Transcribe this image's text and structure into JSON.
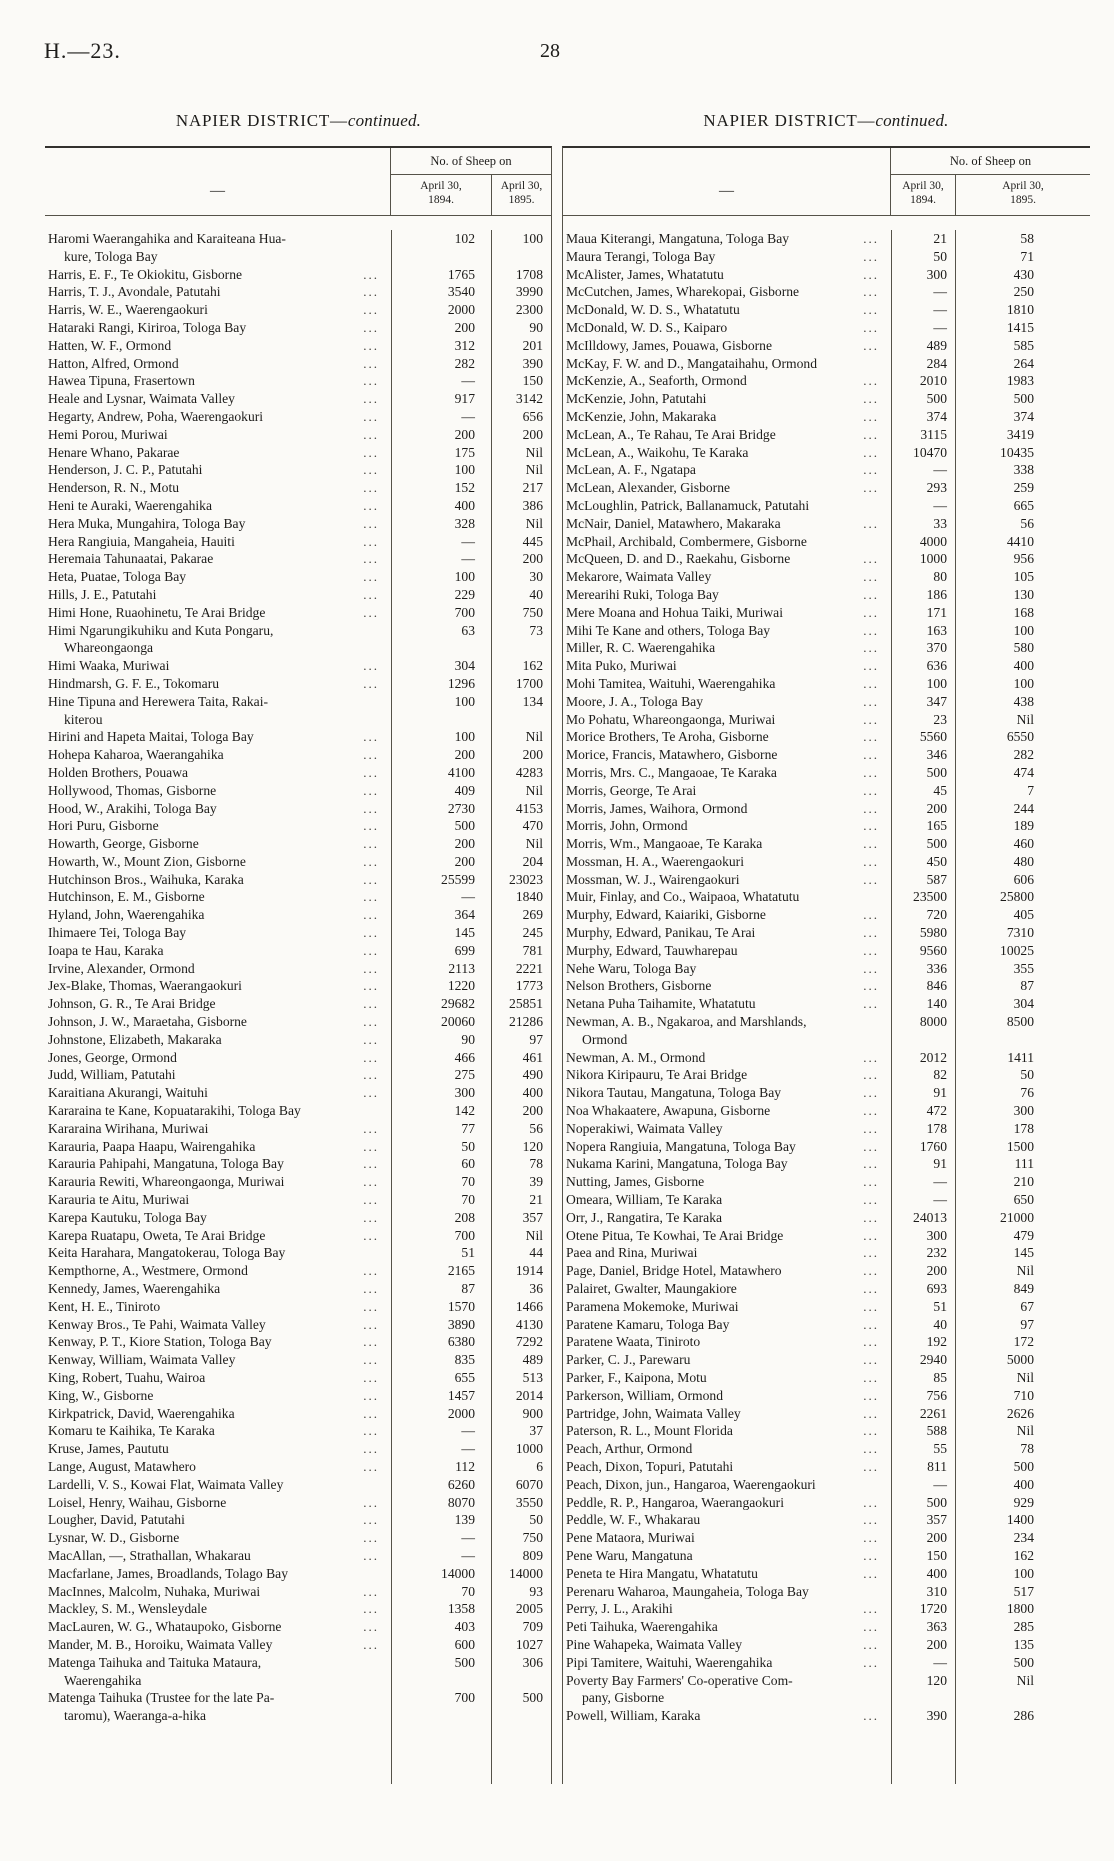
{
  "page": {
    "doc_ref": "H.—23.",
    "page_number": "28"
  },
  "leader_dots": "...",
  "tables": {
    "left": {
      "title_main": "NAPIER DISTRICT—",
      "title_cont": "continued.",
      "placeholder_dash": "—",
      "sheep_header": "No. of Sheep on",
      "col_1894_line1": "April 30,",
      "col_1894_line2": "1894.",
      "col_1895_line1": "April 30,",
      "col_1895_line2": "1895.",
      "rows": [
        [
          "Haromi Waerangahika and Karaiteana Hua-\nkure, Tologa Bay",
          "102",
          "100",
          0
        ],
        [
          "Harris, E. F., Te Okiokitu, Gisborne",
          "1765",
          "1708",
          1
        ],
        [
          "Harris, T. J., Avondale, Patutahi",
          "3540",
          "3990",
          1
        ],
        [
          "Harris, W. E., Waerengaokuri",
          "2000",
          "2300",
          1
        ],
        [
          "Hataraki Rangi, Kiriroa, Tologa Bay",
          "200",
          "90",
          1
        ],
        [
          "Hatten, W. F., Ormond",
          "312",
          "201",
          1
        ],
        [
          "Hatton, Alfred, Ormond",
          "282",
          "390",
          1
        ],
        [
          "Hawea Tipuna, Frasertown",
          "—",
          "150",
          1
        ],
        [
          "Heale and Lysnar, Waimata Valley",
          "917",
          "3142",
          1
        ],
        [
          "Hegarty, Andrew, Poha, Waerengaokuri",
          "—",
          "656",
          1
        ],
        [
          "Hemi Porou, Muriwai",
          "200",
          "200",
          1
        ],
        [
          "Henare Whano, Pakarae",
          "175",
          "Nil",
          1
        ],
        [
          "Henderson, J. C. P., Patutahi",
          "100",
          "Nil",
          1
        ],
        [
          "Henderson, R. N., Motu",
          "152",
          "217",
          1
        ],
        [
          "Heni te Auraki, Waerengahika",
          "400",
          "386",
          1
        ],
        [
          "Hera Muka, Mungahira, Tologa Bay",
          "328",
          "Nil",
          1
        ],
        [
          "Hera Rangiuia, Mangaheia, Hauiti",
          "—",
          "445",
          1
        ],
        [
          "Heremaia Tahunaatai, Pakarae",
          "—",
          "200",
          1
        ],
        [
          "Heta, Puatae, Tologa Bay",
          "100",
          "30",
          1
        ],
        [
          "Hills, J. E., Patutahi",
          "229",
          "40",
          1
        ],
        [
          "Himi Hone, Ruaohinetu, Te Arai Bridge",
          "700",
          "750",
          1
        ],
        [
          "Himi Ngarungikuhiku and Kuta Pongaru,\nWhareongaonga",
          "63",
          "73",
          0
        ],
        [
          "Himi Waaka, Muriwai",
          "304",
          "162",
          1
        ],
        [
          "Hindmarsh, G. F. E., Tokomaru",
          "1296",
          "1700",
          1
        ],
        [
          "Hine Tipuna and Herewera Taita, Rakai-\nkiterou",
          "100",
          "134",
          0
        ],
        [
          "Hirini and Hapeta Maitai, Tologa Bay",
          "100",
          "Nil",
          1
        ],
        [
          "Hohepa Kaharoa, Waerangahika",
          "200",
          "200",
          1
        ],
        [
          "Holden Brothers, Pouawa",
          "4100",
          "4283",
          1
        ],
        [
          "Hollywood, Thomas, Gisborne",
          "409",
          "Nil",
          1
        ],
        [
          "Hood, W., Arakihi, Tologa Bay",
          "2730",
          "4153",
          1
        ],
        [
          "Hori Puru, Gisborne",
          "500",
          "470",
          1
        ],
        [
          "Howarth, George, Gisborne",
          "200",
          "Nil",
          1
        ],
        [
          "Howarth, W., Mount Zion, Gisborne",
          "200",
          "204",
          1
        ],
        [
          "Hutchinson Bros., Waihuka, Karaka",
          "25599",
          "23023",
          1
        ],
        [
          "Hutchinson, E. M., Gisborne",
          "—",
          "1840",
          1
        ],
        [
          "Hyland, John, Waerengahika",
          "364",
          "269",
          1
        ],
        [
          "Ihimaere Tei, Tologa Bay",
          "145",
          "245",
          1
        ],
        [
          "Ioapa te Hau, Karaka",
          "699",
          "781",
          1
        ],
        [
          "Irvine, Alexander, Ormond",
          "2113",
          "2221",
          1
        ],
        [
          "Jex-Blake, Thomas, Waerangaokuri",
          "1220",
          "1773",
          1
        ],
        [
          "Johnson, G. R., Te Arai Bridge",
          "29682",
          "25851",
          1
        ],
        [
          "Johnson, J. W., Maraetaha, Gisborne",
          "20060",
          "21286",
          1
        ],
        [
          "Johnstone, Elizabeth, Makaraka",
          "90",
          "97",
          1
        ],
        [
          "Jones, George, Ormond",
          "466",
          "461",
          1
        ],
        [
          "Judd, William, Patutahi",
          "275",
          "490",
          1
        ],
        [
          "Karaitiana Akurangi, Waituhi",
          "300",
          "400",
          1
        ],
        [
          "Kararaina te Kane, Kopuatarakihi, Tologa Bay",
          "142",
          "200",
          0
        ],
        [
          "Kararaina Wirihana, Muriwai",
          "77",
          "56",
          1
        ],
        [
          "Karauria, Paapa Haapu, Wairengahika",
          "50",
          "120",
          1
        ],
        [
          "Karauria Pahipahi, Mangatuna, Tologa Bay",
          "60",
          "78",
          1
        ],
        [
          "Karauria Rewiti, Whareongaonga, Muriwai",
          "70",
          "39",
          1
        ],
        [
          "Karauria te Aitu, Muriwai",
          "70",
          "21",
          1
        ],
        [
          "Karepa Kautuku, Tologa Bay",
          "208",
          "357",
          1
        ],
        [
          "Karepa Ruatapu, Oweta, Te Arai Bridge",
          "700",
          "Nil",
          1
        ],
        [
          "Keita Harahara, Mangatokerau, Tologa Bay",
          "51",
          "44",
          0
        ],
        [
          "Kempthorne, A., Westmere, Ormond",
          "2165",
          "1914",
          1
        ],
        [
          "Kennedy, James, Waerengahika",
          "87",
          "36",
          1
        ],
        [
          "Kent, H. E., Tiniroto",
          "1570",
          "1466",
          1
        ],
        [
          "Kenway Bros., Te Pahi, Waimata Valley",
          "3890",
          "4130",
          1
        ],
        [
          "Kenway, P. T., Kiore Station, Tologa Bay",
          "6380",
          "7292",
          1
        ],
        [
          "Kenway, William, Waimata Valley",
          "835",
          "489",
          1
        ],
        [
          "King, Robert, Tuahu, Wairoa",
          "655",
          "513",
          1
        ],
        [
          "King, W., Gisborne",
          "1457",
          "2014",
          1
        ],
        [
          "Kirkpatrick, David, Waerengahika",
          "2000",
          "900",
          1
        ],
        [
          "Komaru te Kaihika, Te Karaka",
          "—",
          "37",
          1
        ],
        [
          "Kruse, James, Paututu",
          "—",
          "1000",
          1
        ],
        [
          "Lange, August, Matawhero",
          "112",
          "6",
          1
        ],
        [
          "Lardelli, V. S., Kowai Flat, Waimata Valley",
          "6260",
          "6070",
          0
        ],
        [
          "Loisel, Henry, Waihau, Gisborne",
          "8070",
          "3550",
          1
        ],
        [
          "Lougher, David, Patutahi",
          "139",
          "50",
          1
        ],
        [
          "Lysnar, W. D., Gisborne",
          "—",
          "750",
          1
        ],
        [
          "MacAllan, —, Strathallan, Whakarau",
          "—",
          "809",
          1
        ],
        [
          "Macfarlane, James, Broadlands, Tolago Bay",
          "14000",
          "14000",
          0
        ],
        [
          "MacInnes, Malcolm, Nuhaka, Muriwai",
          "70",
          "93",
          1
        ],
        [
          "Mackley, S. M., Wensleydale",
          "1358",
          "2005",
          1
        ],
        [
          "MacLauren, W. G., Whataupoko, Gisborne",
          "403",
          "709",
          1
        ],
        [
          "Mander, M. B., Horoiku, Waimata Valley",
          "600",
          "1027",
          1
        ],
        [
          "Matenga Taihuka and Taituka Mataura,\nWaerengahika",
          "500",
          "306",
          0
        ],
        [
          "Matenga Taihuka (Trustee for the late Pa-\ntaromu), Waeranga-a-hika",
          "700",
          "500",
          0
        ]
      ]
    },
    "right": {
      "title_main": "NAPIER DISTRICT—",
      "title_cont": "continued.",
      "placeholder_dash": "—",
      "sheep_header": "No. of Sheep on",
      "col_1894_line1": "April 30,",
      "col_1894_line2": "1894.",
      "col_1895_line1": "April 30,",
      "col_1895_line2": "1895.",
      "rows": [
        [
          "Maua Kiterangi, Mangatuna, Tologa Bay",
          "21",
          "58",
          1
        ],
        [
          "Maura Terangi, Tologa Bay",
          "50",
          "71",
          1
        ],
        [
          "McAlister, James, Whatatutu",
          "300",
          "430",
          1
        ],
        [
          "McCutchen, James, Wharekopai, Gisborne",
          "—",
          "250",
          1
        ],
        [
          "McDonald, W. D. S., Whatatutu",
          "—",
          "1810",
          1
        ],
        [
          "McDonald, W. D. S., Kaiparo",
          "—",
          "1415",
          1
        ],
        [
          "McIlldowy, James, Pouawa, Gisborne",
          "489",
          "585",
          1
        ],
        [
          "McKay, F. W. and D., Mangataihahu, Ormond",
          "284",
          "264",
          0
        ],
        [
          "McKenzie, A., Seaforth, Ormond",
          "2010",
          "1983",
          1
        ],
        [
          "McKenzie, John, Patutahi",
          "500",
          "500",
          1
        ],
        [
          "McKenzie, John, Makaraka",
          "374",
          "374",
          1
        ],
        [
          "McLean, A., Te Rahau, Te Arai Bridge",
          "3115",
          "3419",
          1
        ],
        [
          "McLean, A., Waikohu, Te Karaka",
          "10470",
          "10435",
          1
        ],
        [
          "McLean, A. F., Ngatapa",
          "—",
          "338",
          1
        ],
        [
          "McLean, Alexander, Gisborne",
          "293",
          "259",
          1
        ],
        [
          "McLoughlin, Patrick, Ballanamuck, Patutahi",
          "—",
          "665",
          0
        ],
        [
          "McNair, Daniel, Matawhero, Makaraka",
          "33",
          "56",
          1
        ],
        [
          "McPhail, Archibald, Combermere, Gisborne",
          "4000",
          "4410",
          0
        ],
        [
          "McQueen, D. and D., Raekahu, Gisborne",
          "1000",
          "956",
          1
        ],
        [
          "Mekarore, Waimata Valley",
          "80",
          "105",
          1
        ],
        [
          "Merearihi Ruki, Tologa Bay",
          "186",
          "130",
          1
        ],
        [
          "Mere Moana and Hohua Taiki, Muriwai",
          "171",
          "168",
          1
        ],
        [
          "Mihi Te Kane and others, Tologa Bay",
          "163",
          "100",
          1
        ],
        [
          "Miller, R. C. Waerengahika",
          "370",
          "580",
          1
        ],
        [
          "Mita Puko, Muriwai",
          "636",
          "400",
          1
        ],
        [
          "Mohi Tamitea, Waituhi, Waerengahika",
          "100",
          "100",
          1
        ],
        [
          "Moore, J. A., Tologa Bay",
          "347",
          "438",
          1
        ],
        [
          "Mo Pohatu, Whareongaonga, Muriwai",
          "23",
          "Nil",
          1
        ],
        [
          "Morice Brothers, Te Aroha, Gisborne",
          "5560",
          "6550",
          1
        ],
        [
          "Morice, Francis, Matawhero, Gisborne",
          "346",
          "282",
          1
        ],
        [
          "Morris, Mrs. C., Mangaoae, Te Karaka",
          "500",
          "474",
          1
        ],
        [
          "Morris, George, Te Arai",
          "45",
          "7",
          1
        ],
        [
          "Morris, James, Waihora, Ormond",
          "200",
          "244",
          1
        ],
        [
          "Morris, John, Ormond",
          "165",
          "189",
          1
        ],
        [
          "Morris, Wm., Mangaoae, Te Karaka",
          "500",
          "460",
          1
        ],
        [
          "Mossman, H. A., Waerengaokuri",
          "450",
          "480",
          1
        ],
        [
          "Mossman, W. J., Wairengaokuri",
          "587",
          "606",
          1
        ],
        [
          "Muir, Finlay, and Co., Waipaoa, Whatatutu",
          "23500",
          "25800",
          0
        ],
        [
          "Murphy, Edward, Kaiariki, Gisborne",
          "720",
          "405",
          1
        ],
        [
          "Murphy, Edward, Panikau, Te Arai",
          "5980",
          "7310",
          1
        ],
        [
          "Murphy, Edward, Tauwharepau",
          "9560",
          "10025",
          1
        ],
        [
          "Nehe Waru, Tologa Bay",
          "336",
          "355",
          1
        ],
        [
          "Nelson Brothers, Gisborne",
          "846",
          "87",
          1
        ],
        [
          "Netana Puha Taihamite, Whatatutu",
          "140",
          "304",
          1
        ],
        [
          "Newman, A. B., Ngakaroa, and Marshlands,\nOrmond",
          "8000",
          "8500",
          0
        ],
        [
          "Newman, A. M., Ormond",
          "2012",
          "1411",
          1
        ],
        [
          "Nikora Kiripauru, Te Arai Bridge",
          "82",
          "50",
          1
        ],
        [
          "Nikora Tautau, Mangatuna, Tologa Bay",
          "91",
          "76",
          1
        ],
        [
          "Noa Whakaatere, Awapuna, Gisborne",
          "472",
          "300",
          1
        ],
        [
          "Noperakiwi, Waimata Valley",
          "178",
          "178",
          1
        ],
        [
          "Nopera Rangiuia, Mangatuna, Tologa Bay",
          "1760",
          "1500",
          1
        ],
        [
          "Nukama Karini, Mangatuna, Tologa Bay",
          "91",
          "111",
          1
        ],
        [
          "Nutting, James, Gisborne",
          "—",
          "210",
          1
        ],
        [
          "Omeara, William, Te Karaka",
          "—",
          "650",
          1
        ],
        [
          "Orr, J., Rangatira, Te Karaka",
          "24013",
          "21000",
          1
        ],
        [
          "Otene Pitua, Te Kowhai, Te Arai Bridge",
          "300",
          "479",
          1
        ],
        [
          "Paea and Rina, Muriwai",
          "232",
          "145",
          1
        ],
        [
          "Page, Daniel, Bridge Hotel, Matawhero",
          "200",
          "Nil",
          1
        ],
        [
          "Palairet, Gwalter, Maungakiore",
          "693",
          "849",
          1
        ],
        [
          "Paramena Mokemoke, Muriwai",
          "51",
          "67",
          1
        ],
        [
          "Paratene Kamaru, Tologa Bay",
          "40",
          "97",
          1
        ],
        [
          "Paratene Waata, Tiniroto",
          "192",
          "172",
          1
        ],
        [
          "Parker, C. J., Parewaru",
          "2940",
          "5000",
          1
        ],
        [
          "Parker, F., Kaipona, Motu",
          "85",
          "Nil",
          1
        ],
        [
          "Parkerson, William, Ormond",
          "756",
          "710",
          1
        ],
        [
          "Partridge, John, Waimata Valley",
          "2261",
          "2626",
          1
        ],
        [
          "Paterson, R. L., Mount Florida",
          "588",
          "Nil",
          1
        ],
        [
          "Peach, Arthur, Ormond",
          "55",
          "78",
          1
        ],
        [
          "Peach, Dixon, Topuri, Patutahi",
          "811",
          "500",
          1
        ],
        [
          "Peach, Dixon, jun., Hangaroa, Waerengaokuri",
          "—",
          "400",
          0
        ],
        [
          "Peddle, R. P., Hangaroa, Waerangaokuri",
          "500",
          "929",
          1
        ],
        [
          "Peddle, W. F., Whakarau",
          "357",
          "1400",
          1
        ],
        [
          "Pene Mataora, Muriwai",
          "200",
          "234",
          1
        ],
        [
          "Pene Waru, Mangatuna",
          "150",
          "162",
          1
        ],
        [
          "Peneta te Hira Mangatu, Whatatutu",
          "400",
          "100",
          1
        ],
        [
          "Perenaru Waharoa, Maungaheia, Tologa Bay",
          "310",
          "517",
          0
        ],
        [
          "Perry, J. L., Arakihi",
          "1720",
          "1800",
          1
        ],
        [
          "Peti Taihuka, Waerengahika",
          "363",
          "285",
          1
        ],
        [
          "Pine Wahapeka, Waimata Valley",
          "200",
          "135",
          1
        ],
        [
          "Pipi Tamitere, Waituhi, Waerengahika",
          "—",
          "500",
          1
        ],
        [
          "Poverty Bay Farmers' Co-operative Com-\npany, Gisborne",
          "120",
          "Nil",
          0
        ],
        [
          "Powell, William, Karaka",
          "390",
          "286",
          1
        ]
      ]
    }
  }
}
